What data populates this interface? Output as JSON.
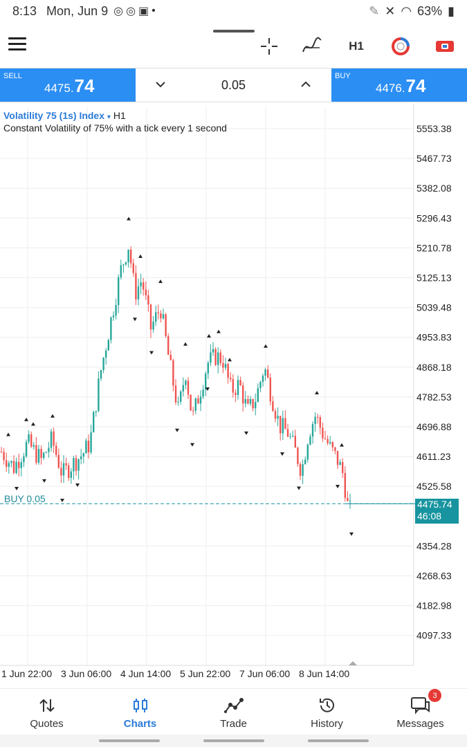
{
  "status_bar": {
    "time": "8:13",
    "date": "Mon, Jun 9",
    "battery": "63%"
  },
  "toolbar": {
    "timeframe": "H1"
  },
  "trade": {
    "sell_label": "SELL",
    "sell_price_main": "4475.",
    "sell_price_big": "74",
    "buy_label": "BUY",
    "buy_price_main": "4476.",
    "buy_price_big": "74",
    "volume": "0.05"
  },
  "chart": {
    "symbol": "Volatility 75 (1s) Index",
    "dropdown": "▾",
    "timeframe": "H1",
    "description": "Constant Volatility of 75% with a tick every 1 second",
    "buy_line_label": "BUY 0.05",
    "current_price": "4475.74",
    "countdown": "46:08",
    "price_axis": [
      "5553.38",
      "5467.73",
      "5382.08",
      "5296.43",
      "5210.78",
      "5125.13",
      "5039.48",
      "4953.83",
      "4868.18",
      "4782.53",
      "4696.88",
      "4611.23",
      "4525.58",
      "4354.28",
      "4268.63",
      "4182.98",
      "4097.33"
    ],
    "time_axis": [
      "1 Jun 22:00",
      "3 Jun 06:00",
      "4 Jun 14:00",
      "5 Jun 22:00",
      "7 Jun 06:00",
      "8 Jun 14:00"
    ],
    "up_color": "#26a69a",
    "down_color": "#ef5350",
    "line_color": "#17949f"
  },
  "nav": {
    "quotes": "Quotes",
    "charts": "Charts",
    "trade": "Trade",
    "history": "History",
    "messages": "Messages",
    "messages_badge": "3"
  }
}
